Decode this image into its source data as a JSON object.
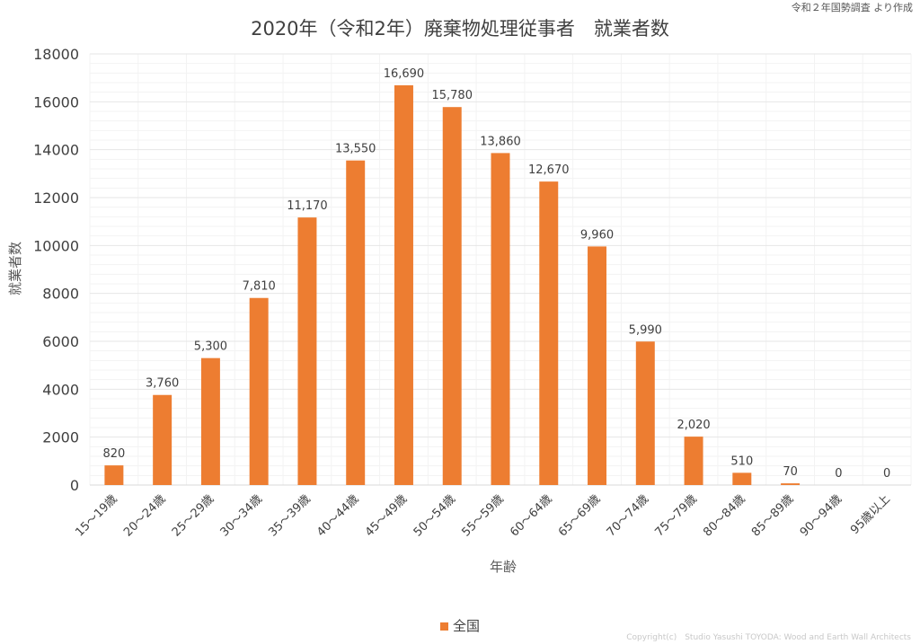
{
  "source_note": "令和２年国勢調査 より作成",
  "copyright": "Copyright(c)　Studio Yasushi TOYODA: Wood and Earth Wall Architects",
  "colors": {
    "bar": "#ED7D31",
    "grid": "#E6E6E6",
    "minor_grid": "#F3F3F3",
    "text": "#404040"
  },
  "chart_data": {
    "type": "bar",
    "title": "2020年（令和2年）廃棄物処理従事者　就業者数",
    "xlabel": "年齢",
    "ylabel": "就業者数",
    "ylim": [
      0,
      18000
    ],
    "yticks": [
      "0",
      "2000",
      "4000",
      "6000",
      "8000",
      "10000",
      "12000",
      "14000",
      "16000",
      "18000"
    ],
    "grid": true,
    "legend_position": "bottom",
    "categories": [
      "15～19歳",
      "20～24歳",
      "25～29歳",
      "30～34歳",
      "35～39歳",
      "40～44歳",
      "45～49歳",
      "50～54歳",
      "55～59歳",
      "60～64歳",
      "65～69歳",
      "70～74歳",
      "75～79歳",
      "80～84歳",
      "85～89歳",
      "90～94歳",
      "95歳以上"
    ],
    "series": [
      {
        "name": "全国",
        "values": [
          820,
          3760,
          5300,
          7810,
          11170,
          13550,
          16690,
          15780,
          13860,
          12670,
          9960,
          5990,
          2020,
          510,
          70,
          0,
          0
        ],
        "labels": [
          "820",
          "3,760",
          "5,300",
          "7,810",
          "11,170",
          "13,550",
          "16,690",
          "15,780",
          "13,860",
          "12,670",
          "9,960",
          "5,990",
          "2,020",
          "510",
          "70",
          "0",
          "0"
        ]
      }
    ]
  }
}
